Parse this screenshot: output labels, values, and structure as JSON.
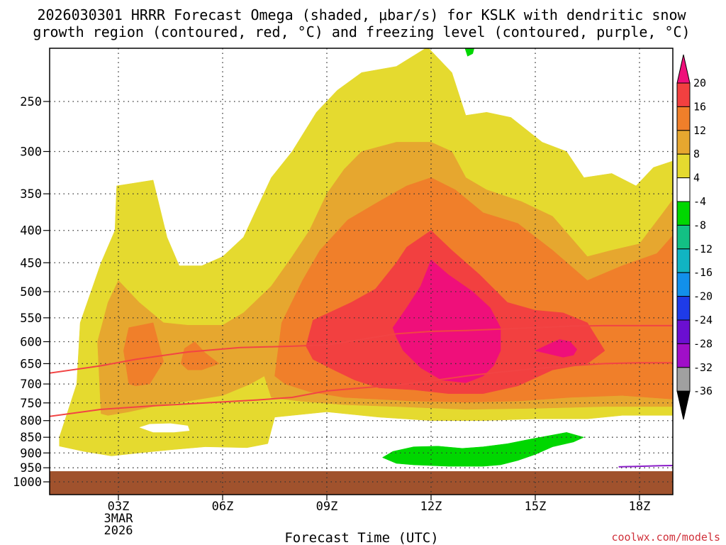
{
  "title_line1": "2026030301 HRRR Forecast Omega (shaded, μbar/s) for KSLK with dendritic snow",
  "title_line2": "growth region (contoured, red, °C) and freezing level (contoured, purple, °C)",
  "credit": "coolwx.com/models",
  "chart_data": {
    "type": "heatmap",
    "xlabel": "Forecast Time (UTC)",
    "xlim": [
      1,
      19
    ],
    "ylim": [
      200,
      1050
    ],
    "x_ticks": [
      {
        "hour": 3,
        "label": "03Z",
        "sub1": "3MAR",
        "sub2": "2026"
      },
      {
        "hour": 6,
        "label": "06Z",
        "sub1": "",
        "sub2": ""
      },
      {
        "hour": 9,
        "label": "09Z",
        "sub1": "",
        "sub2": ""
      },
      {
        "hour": 12,
        "label": "12Z",
        "sub1": "",
        "sub2": ""
      },
      {
        "hour": 15,
        "label": "15Z",
        "sub1": "",
        "sub2": ""
      },
      {
        "hour": 18,
        "label": "18Z",
        "sub1": "",
        "sub2": ""
      }
    ],
    "y_ticks": [
      250,
      300,
      350,
      400,
      450,
      500,
      550,
      600,
      650,
      700,
      750,
      800,
      850,
      900,
      950,
      1000
    ],
    "ground_level_hpa": 962,
    "colorbar": {
      "labels": [
        "20",
        "16",
        "12",
        "8",
        "4",
        "-4",
        "-8",
        "-12",
        "-16",
        "-20",
        "-24",
        "-28",
        "-32",
        "-36"
      ],
      "colors": [
        "#ef0f7a",
        "#f24040",
        "#f07f2a",
        "#e6a72f",
        "#e5da2f",
        "#ffffff",
        "#00d700",
        "#13c084",
        "#11b4c2",
        "#1290eb",
        "#1e3be8",
        "#6b0fd1",
        "#a00fc8",
        "#a0a0a0",
        "#000000"
      ]
    },
    "omega_regions": [
      {
        "level": "4-8",
        "color": "#e5da2f",
        "points": [
          [
            1.3,
            850
          ],
          [
            1.8,
            700
          ],
          [
            1.9,
            560
          ],
          [
            2.5,
            450
          ],
          [
            2.9,
            400
          ],
          [
            2.95,
            340
          ],
          [
            4,
            333
          ],
          [
            4.4,
            410
          ],
          [
            4.75,
            455
          ],
          [
            5.4,
            455
          ],
          [
            6,
            440
          ],
          [
            6.6,
            410
          ],
          [
            7.4,
            330
          ],
          [
            8,
            300
          ],
          [
            8.7,
            260
          ],
          [
            9.3,
            240
          ],
          [
            10,
            225
          ],
          [
            11,
            220
          ],
          [
            11.9,
            205
          ],
          [
            12.6,
            225
          ],
          [
            13,
            263
          ],
          [
            13.6,
            260
          ],
          [
            14.3,
            265
          ],
          [
            15.2,
            290
          ],
          [
            15.9,
            300
          ],
          [
            16.4,
            330
          ],
          [
            17.2,
            325
          ],
          [
            17.9,
            340
          ],
          [
            18.4,
            318
          ],
          [
            19,
            310
          ],
          [
            19,
            785
          ],
          [
            17.5,
            785
          ],
          [
            16.5,
            795
          ],
          [
            15,
            795
          ],
          [
            13.5,
            800
          ],
          [
            12,
            800
          ],
          [
            10.5,
            790
          ],
          [
            9.5,
            780
          ],
          [
            9,
            775
          ],
          [
            7.5,
            790
          ],
          [
            7.3,
            870
          ],
          [
            6.7,
            883
          ],
          [
            5.5,
            880
          ],
          [
            4.5,
            890
          ],
          [
            3.6,
            900
          ],
          [
            2.8,
            910
          ],
          [
            2,
            895
          ],
          [
            1.3,
            878
          ]
        ]
      },
      {
        "level": "8-12",
        "color": "#e6a72f",
        "points": [
          [
            2.5,
            780
          ],
          [
            2.4,
            600
          ],
          [
            2.7,
            520
          ],
          [
            3,
            480
          ],
          [
            3.6,
            520
          ],
          [
            4.3,
            560
          ],
          [
            5,
            565
          ],
          [
            6,
            565
          ],
          [
            6.6,
            540
          ],
          [
            7.4,
            490
          ],
          [
            8,
            440
          ],
          [
            8.5,
            400
          ],
          [
            9,
            350
          ],
          [
            9.5,
            320
          ],
          [
            10,
            300
          ],
          [
            11,
            290
          ],
          [
            12,
            290
          ],
          [
            12.6,
            300
          ],
          [
            13,
            330
          ],
          [
            13.6,
            345
          ],
          [
            14.6,
            360
          ],
          [
            15.5,
            380
          ],
          [
            16.5,
            440
          ],
          [
            17.2,
            430
          ],
          [
            18,
            420
          ],
          [
            18.6,
            380
          ],
          [
            19,
            355
          ],
          [
            19,
            760
          ],
          [
            17,
            760
          ],
          [
            15,
            765
          ],
          [
            13,
            768
          ],
          [
            11,
            760
          ],
          [
            9.5,
            755
          ],
          [
            8.2,
            745
          ],
          [
            7.4,
            735
          ],
          [
            7.2,
            680
          ],
          [
            6.8,
            700
          ],
          [
            6,
            730
          ],
          [
            5,
            745
          ],
          [
            4,
            760
          ],
          [
            3.3,
            775
          ],
          [
            2.7,
            785
          ]
        ]
      },
      {
        "level": "12-16",
        "color": "#f07f2a",
        "points": [
          [
            3.3,
            700
          ],
          [
            3.15,
            620
          ],
          [
            3.3,
            570
          ],
          [
            4,
            560
          ],
          [
            4.3,
            645
          ],
          [
            3.9,
            700
          ],
          [
            3.5,
            705
          ]
        ]
      },
      {
        "level": "12-16",
        "color": "#f07f2a",
        "points": [
          [
            4.8,
            650
          ],
          [
            4.9,
            615
          ],
          [
            5.2,
            600
          ],
          [
            5.5,
            625
          ],
          [
            5.9,
            650
          ],
          [
            5.4,
            665
          ],
          [
            5,
            665
          ]
        ]
      },
      {
        "level": "12-16",
        "color": "#f07f2a",
        "points": [
          [
            7.5,
            680
          ],
          [
            7.7,
            560
          ],
          [
            8.3,
            480
          ],
          [
            8.8,
            430
          ],
          [
            9.6,
            385
          ],
          [
            10.5,
            360
          ],
          [
            11.3,
            340
          ],
          [
            12,
            330
          ],
          [
            12.7,
            345
          ],
          [
            13.5,
            375
          ],
          [
            14.5,
            390
          ],
          [
            15.5,
            430
          ],
          [
            16.5,
            480
          ],
          [
            17.5,
            455
          ],
          [
            18.5,
            435
          ],
          [
            19,
            405
          ],
          [
            19,
            740
          ],
          [
            17.5,
            730
          ],
          [
            16,
            735
          ],
          [
            14.5,
            745
          ],
          [
            13,
            748
          ],
          [
            11.5,
            745
          ],
          [
            10.5,
            740
          ],
          [
            9.5,
            735
          ],
          [
            8.5,
            720
          ],
          [
            7.8,
            700
          ]
        ]
      },
      {
        "level": "16-20",
        "color": "#f24040",
        "points": [
          [
            8.4,
            610
          ],
          [
            8.6,
            555
          ],
          [
            9.7,
            520
          ],
          [
            10.4,
            495
          ],
          [
            11,
            450
          ],
          [
            11.3,
            425
          ],
          [
            12,
            400
          ],
          [
            12.6,
            430
          ],
          [
            13.4,
            470
          ],
          [
            14.2,
            520
          ],
          [
            15,
            535
          ],
          [
            15.8,
            540
          ],
          [
            16.5,
            560
          ],
          [
            17,
            620
          ],
          [
            16.5,
            650
          ],
          [
            15.5,
            665
          ],
          [
            14.5,
            705
          ],
          [
            13.5,
            725
          ],
          [
            12.5,
            725
          ],
          [
            11.5,
            715
          ],
          [
            10.5,
            710
          ],
          [
            9.8,
            690
          ],
          [
            9.2,
            665
          ],
          [
            8.6,
            640
          ]
        ]
      },
      {
        "level": ">20",
        "color": "#ef0f7a",
        "points": [
          [
            11,
            590
          ],
          [
            10.9,
            570
          ],
          [
            11.3,
            530
          ],
          [
            11.7,
            490
          ],
          [
            11.9,
            460
          ],
          [
            12,
            445
          ],
          [
            12.5,
            470
          ],
          [
            13.2,
            500
          ],
          [
            13.7,
            530
          ],
          [
            14,
            570
          ],
          [
            14,
            620
          ],
          [
            13.8,
            655
          ],
          [
            13.5,
            680
          ],
          [
            13,
            697
          ],
          [
            12.3,
            690
          ],
          [
            11.7,
            660
          ],
          [
            11.2,
            620
          ]
        ]
      },
      {
        "level": ">20",
        "color": "#ef0f7a",
        "points": [
          [
            15,
            620
          ],
          [
            15.4,
            605
          ],
          [
            15.7,
            595
          ],
          [
            16,
            600
          ],
          [
            16.2,
            617
          ],
          [
            16.1,
            630
          ],
          [
            15.8,
            635
          ]
        ]
      },
      {
        "level": "-8 to -4",
        "color": "#00d700",
        "points": [
          [
            10.6,
            915
          ],
          [
            10.9,
            895
          ],
          [
            11.5,
            880
          ],
          [
            12.2,
            878
          ],
          [
            12.9,
            885
          ],
          [
            13.5,
            880
          ],
          [
            14.2,
            870
          ],
          [
            14.9,
            855
          ],
          [
            15.4,
            845
          ],
          [
            15.9,
            835
          ],
          [
            16.4,
            850
          ],
          [
            16.1,
            865
          ],
          [
            15.5,
            880
          ],
          [
            15,
            905
          ],
          [
            14.5,
            925
          ],
          [
            14,
            940
          ],
          [
            13.5,
            945
          ],
          [
            12.5,
            945
          ],
          [
            11.5,
            940
          ],
          [
            11,
            935
          ]
        ]
      },
      {
        "level": "-8 to -4",
        "color": "#00d700",
        "points": [
          [
            12.9,
            200
          ],
          [
            13.3,
            200
          ],
          [
            13.2,
            210
          ],
          [
            13.05,
            212
          ]
        ]
      }
    ],
    "white_holes": [
      {
        "points": [
          [
            3.6,
            820
          ],
          [
            3.9,
            810
          ],
          [
            4.5,
            808
          ],
          [
            5,
            815
          ],
          [
            5.05,
            830
          ],
          [
            4.6,
            835
          ],
          [
            4,
            835
          ]
        ]
      }
    ],
    "dgz_contours": [
      {
        "name": "-12 C",
        "color": "#f24444",
        "points": [
          [
            1,
            673
          ],
          [
            2.5,
            655
          ],
          [
            3.5,
            640
          ],
          [
            5,
            623
          ],
          [
            6.5,
            613
          ],
          [
            8,
            610
          ],
          [
            9,
            607
          ],
          [
            10,
            595
          ],
          [
            11,
            583
          ],
          [
            12,
            578
          ],
          [
            13,
            576
          ],
          [
            14,
            573
          ],
          [
            15,
            570
          ],
          [
            16,
            567
          ],
          [
            17,
            566
          ],
          [
            18,
            566
          ],
          [
            19,
            566
          ]
        ]
      },
      {
        "name": "-18 C",
        "color": "#f24444",
        "points": [
          [
            1,
            788
          ],
          [
            2.5,
            768
          ],
          [
            4,
            758
          ],
          [
            5.5,
            750
          ],
          [
            7,
            742
          ],
          [
            8,
            735
          ],
          [
            9,
            718
          ],
          [
            10,
            710
          ],
          [
            11,
            703
          ],
          [
            12,
            692
          ],
          [
            13,
            680
          ],
          [
            14,
            670
          ],
          [
            15,
            662
          ],
          [
            16,
            655
          ],
          [
            17,
            650
          ],
          [
            18,
            648
          ],
          [
            19,
            648
          ]
        ]
      }
    ],
    "freezing_level_contour": {
      "name": "0 C",
      "color": "#8b1ec9",
      "points": [
        [
          17.4,
          947
        ],
        [
          18,
          945
        ],
        [
          18.6,
          943
        ],
        [
          19,
          942
        ]
      ]
    }
  }
}
